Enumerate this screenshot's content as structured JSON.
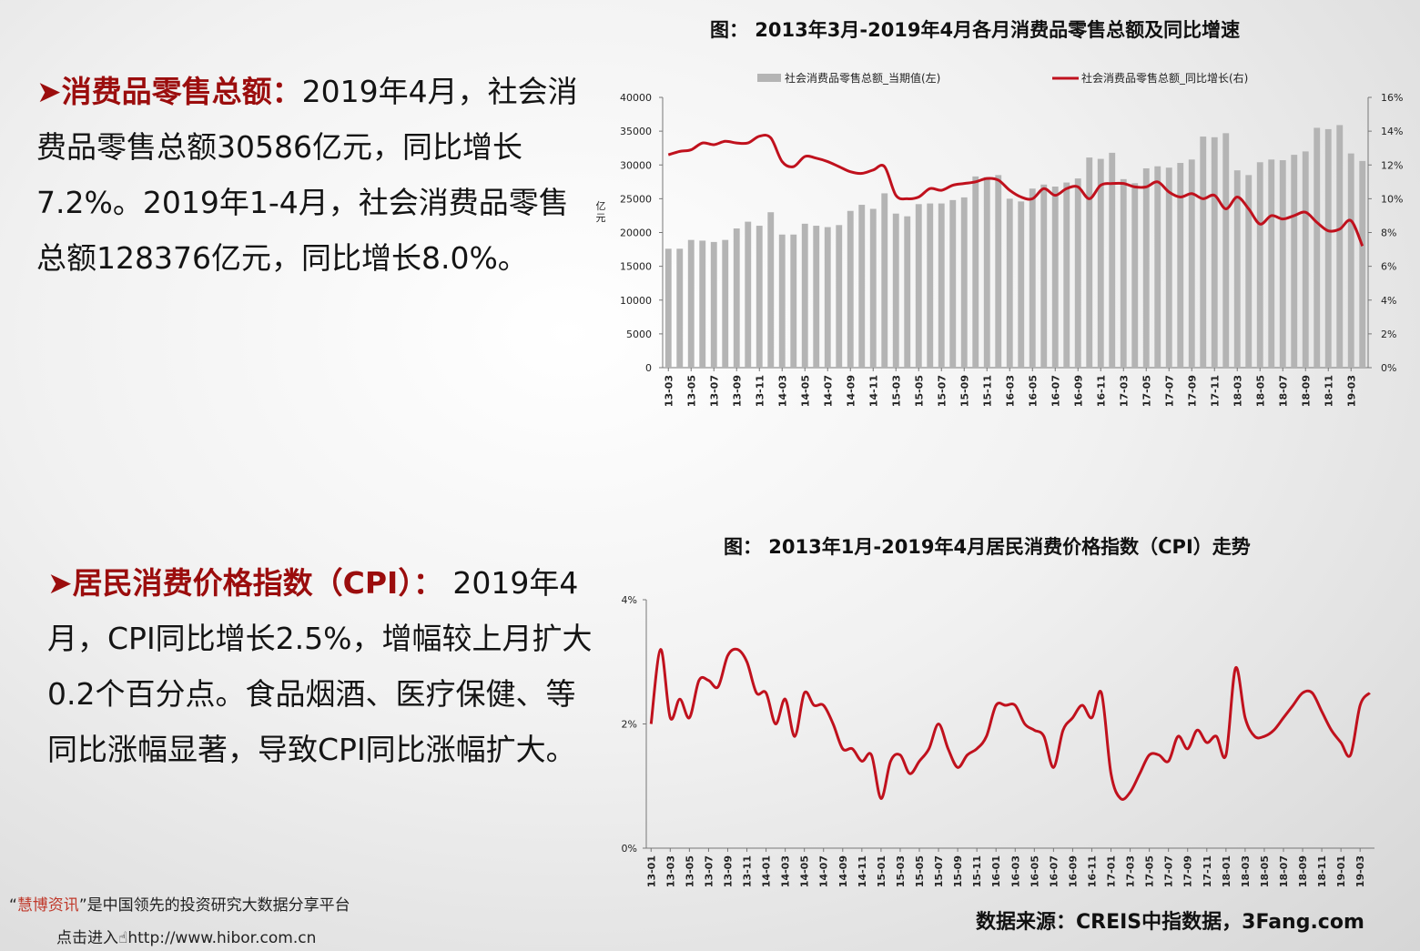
{
  "paragraph1": {
    "marker": "➤",
    "heading": "消费品零售总额：",
    "body": "2019年4月，社会消费品零售总额30586亿元，同比增长7.2%。2019年1-4月，社会消费品零售总额128376亿元，同比增长8.0%。"
  },
  "paragraph2": {
    "marker": "➤",
    "heading": "居民消费价格指数（CPI）：",
    "body": " 2019年4月，CPI同比增长2.5%，增幅较上月扩大0.2个百分点。食品烟酒、医疗保健、等同比涨幅显著，导致CPI同比涨幅扩大。"
  },
  "chart1_title": "图： 2013年3月-2019年4月各月消费品零售总额及同比增速",
  "chart2_title": "图： 2013年1月-2019年4月居民消费价格指数（CPI）走势",
  "footer": {
    "line1_prefix": "“",
    "brand": "慧博资讯",
    "line1_suffix": "”是中国领先的投资研究大数据分享平台",
    "line2": "点击进入☝http://www.hibor.com.cn"
  },
  "source": "数据来源：CREIS中指数据，3Fang.com",
  "colors": {
    "bar": "#b4b4b4",
    "line": "#c0111d",
    "accent_text": "#9b0d0d"
  },
  "chart_data": [
    {
      "type": "bar+line",
      "title": "图： 2013年3月-2019年4月各月消费品零售总额及同比增速",
      "ylabel": "亿元",
      "ylim_left": [
        0,
        40000
      ],
      "yticks_left": [
        "0",
        "5000",
        "10000",
        "15000",
        "20000",
        "25000",
        "30000",
        "35000",
        "40000"
      ],
      "ylim_right": [
        0,
        16
      ],
      "yticks_right": [
        "0%",
        "2%",
        "4%",
        "6%",
        "8%",
        "10%",
        "12%",
        "14%",
        "16%"
      ],
      "x_tick_labels": [
        "13-03",
        "13-05",
        "13-07",
        "13-09",
        "13-11",
        "14-03",
        "14-05",
        "14-07",
        "14-09",
        "14-11",
        "15-03",
        "15-05",
        "15-07",
        "15-09",
        "15-11",
        "16-03",
        "16-05",
        "16-07",
        "16-09",
        "16-11",
        "17-03",
        "17-05",
        "17-07",
        "17-09",
        "17-11",
        "18-03",
        "18-05",
        "18-07",
        "18-09",
        "18-11",
        "19-03"
      ],
      "legend": [
        "社会消费品零售总额_当期值(左)",
        "社会消费品零售总额_同比增长(右)"
      ],
      "legend_position": "top",
      "x": [
        "13-03",
        "13-04",
        "13-05",
        "13-06",
        "13-07",
        "13-08",
        "13-09",
        "13-10",
        "13-11",
        "13-12",
        "14-03",
        "14-04",
        "14-05",
        "14-06",
        "14-07",
        "14-08",
        "14-09",
        "14-10",
        "14-11",
        "14-12",
        "15-03",
        "15-04",
        "15-05",
        "15-06",
        "15-07",
        "15-08",
        "15-09",
        "15-10",
        "15-11",
        "15-12",
        "16-03",
        "16-04",
        "16-05",
        "16-06",
        "16-07",
        "16-08",
        "16-09",
        "16-10",
        "16-11",
        "16-12",
        "17-03",
        "17-04",
        "17-05",
        "17-06",
        "17-07",
        "17-08",
        "17-09",
        "17-10",
        "17-11",
        "17-12",
        "18-03",
        "18-04",
        "18-05",
        "18-06",
        "18-07",
        "18-08",
        "18-09",
        "18-10",
        "18-11",
        "18-12",
        "19-03",
        "19-04"
      ],
      "series": [
        {
          "name": "社会消费品零售总额_当期值(左)",
          "axis": "left",
          "values": [
            17600,
            17600,
            18900,
            18800,
            18600,
            18900,
            20600,
            21600,
            21000,
            23000,
            19700,
            19700,
            21300,
            21000,
            20800,
            21100,
            23200,
            24100,
            23500,
            25800,
            22800,
            22400,
            24200,
            24300,
            24300,
            24800,
            25200,
            28300,
            28200,
            28500,
            25000,
            24600,
            26500,
            27100,
            26800,
            27400,
            28000,
            31100,
            30900,
            31800,
            27900,
            27300,
            29500,
            29800,
            29600,
            30300,
            30800,
            34200,
            34100,
            34700,
            29200,
            28500,
            30400,
            30800,
            30700,
            31500,
            32000,
            35500,
            35300,
            35900,
            31700,
            30586
          ]
        },
        {
          "name": "社会消费品零售总额_同比增长(右)",
          "axis": "right",
          "values": [
            12.6,
            12.8,
            12.9,
            13.3,
            13.2,
            13.4,
            13.3,
            13.3,
            13.7,
            13.6,
            12.2,
            11.9,
            12.5,
            12.4,
            12.2,
            11.9,
            11.6,
            11.5,
            11.7,
            11.9,
            10.2,
            10.0,
            10.1,
            10.6,
            10.5,
            10.8,
            10.9,
            11.0,
            11.2,
            11.1,
            10.5,
            10.1,
            10.0,
            10.6,
            10.2,
            10.6,
            10.7,
            10.0,
            10.8,
            10.9,
            10.9,
            10.7,
            10.7,
            11.0,
            10.4,
            10.1,
            10.3,
            10.0,
            10.2,
            9.4,
            10.1,
            9.4,
            8.5,
            9.0,
            8.8,
            9.0,
            9.2,
            8.6,
            8.1,
            8.2,
            8.7,
            7.2
          ]
        }
      ]
    },
    {
      "type": "line",
      "title": "图： 2013年1月-2019年4月居民消费价格指数（CPI）走势",
      "ylim": [
        0,
        4
      ],
      "yticks": [
        "0%",
        "2%",
        "4%"
      ],
      "x_tick_labels": [
        "13-01",
        "13-03",
        "13-05",
        "13-07",
        "13-09",
        "13-11",
        "14-01",
        "14-03",
        "14-05",
        "14-07",
        "14-09",
        "14-11",
        "15-01",
        "15-03",
        "15-05",
        "15-07",
        "15-09",
        "15-11",
        "16-01",
        "16-03",
        "16-05",
        "16-07",
        "16-09",
        "16-11",
        "17-01",
        "17-03",
        "17-05",
        "17-07",
        "17-09",
        "17-11",
        "18-01",
        "18-03",
        "18-05",
        "18-07",
        "18-09",
        "18-11",
        "19-01",
        "19-03"
      ],
      "x_start": "2013-01",
      "series": [
        {
          "name": "CPI同比",
          "values": [
            2.0,
            3.2,
            2.1,
            2.4,
            2.1,
            2.7,
            2.7,
            2.6,
            3.1,
            3.2,
            3.0,
            2.5,
            2.5,
            2.0,
            2.4,
            1.8,
            2.5,
            2.3,
            2.3,
            2.0,
            1.6,
            1.6,
            1.4,
            1.5,
            0.8,
            1.4,
            1.5,
            1.2,
            1.4,
            1.6,
            2.0,
            1.6,
            1.3,
            1.5,
            1.6,
            1.8,
            2.3,
            2.3,
            2.3,
            2.0,
            1.9,
            1.8,
            1.3,
            1.9,
            2.1,
            2.3,
            2.1,
            2.5,
            1.2,
            0.8,
            0.9,
            1.2,
            1.5,
            1.5,
            1.4,
            1.8,
            1.6,
            1.9,
            1.7,
            1.8,
            1.5,
            2.9,
            2.1,
            1.8,
            1.8,
            1.9,
            2.1,
            2.3,
            2.5,
            2.5,
            2.2,
            1.9,
            1.7,
            1.5,
            2.3,
            2.5
          ]
        }
      ]
    }
  ]
}
